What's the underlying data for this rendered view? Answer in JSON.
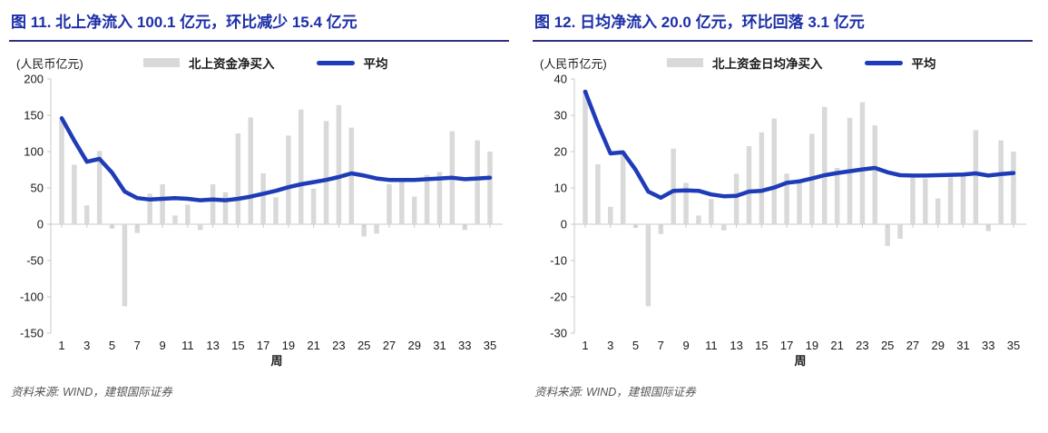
{
  "footer": {
    "text": "资料来源: WIND，建银国际证券"
  },
  "colors": {
    "title": "#1c2fa8",
    "title_underline": "#32327c",
    "bar": "#d9d9d9",
    "line": "#1e3cb8",
    "axis": "#c8c8c8",
    "tick_text": "#1a1a1a",
    "footer_text": "#555555"
  },
  "chart_data": [
    {
      "type": "bar",
      "title": "图 11. 北上净流入 100.1 亿元，环比减少 15.4 亿元",
      "ylabel": "(人民币亿元)",
      "xlabel": "周",
      "ylim": [
        -150,
        200
      ],
      "yticks": [
        200,
        150,
        100,
        50,
        0,
        -50,
        -100,
        -150
      ],
      "xticks": [
        1,
        3,
        5,
        7,
        9,
        11,
        13,
        15,
        17,
        19,
        21,
        23,
        25,
        27,
        29,
        31,
        33,
        35
      ],
      "grid": false,
      "legend_position": "top",
      "x": [
        1,
        2,
        3,
        4,
        5,
        6,
        7,
        8,
        9,
        10,
        11,
        12,
        13,
        14,
        15,
        16,
        17,
        18,
        19,
        20,
        21,
        22,
        23,
        24,
        25,
        26,
        27,
        28,
        29,
        30,
        31,
        32,
        33,
        34,
        35
      ],
      "series": [
        {
          "name": "北上资金净买入",
          "type": "bar",
          "values": [
            144,
            82,
            26,
            101,
            -6,
            -113,
            -12,
            42,
            55,
            12,
            27,
            -8,
            55,
            44,
            125,
            147,
            70,
            37,
            122,
            158,
            49,
            142,
            164,
            133,
            -17,
            -13,
            55,
            58,
            38,
            68,
            72,
            128,
            -8,
            115.5,
            100.1
          ]
        },
        {
          "name": "平均",
          "type": "line",
          "values": [
            146,
            115,
            86,
            90,
            71,
            45,
            36,
            34,
            35,
            36,
            35,
            33,
            34,
            33,
            35,
            38,
            42,
            46,
            51,
            55,
            58,
            61,
            65,
            70,
            67,
            63,
            61,
            61,
            61,
            62,
            63,
            64,
            62,
            63,
            64
          ]
        }
      ]
    },
    {
      "type": "bar",
      "title": "图 12. 日均净流入 20.0 亿元，环比回落 3.1 亿元",
      "ylabel": "(人民币亿元)",
      "xlabel": "周",
      "ylim": [
        -30,
        40
      ],
      "yticks": [
        40,
        30,
        20,
        10,
        0,
        -10,
        -20,
        -30
      ],
      "xticks": [
        1,
        3,
        5,
        7,
        9,
        11,
        13,
        15,
        17,
        19,
        21,
        23,
        25,
        27,
        29,
        31,
        33,
        35
      ],
      "grid": false,
      "legend_position": "top",
      "x": [
        1,
        2,
        3,
        4,
        5,
        6,
        7,
        8,
        9,
        10,
        11,
        12,
        13,
        14,
        15,
        16,
        17,
        18,
        19,
        20,
        21,
        22,
        23,
        24,
        25,
        26,
        27,
        28,
        29,
        30,
        31,
        32,
        33,
        34,
        35
      ],
      "series": [
        {
          "name": "北上资金日均净买入",
          "type": "bar",
          "values": [
            37,
            16.5,
            4.8,
            20.1,
            -1,
            -22.6,
            -2.7,
            20.8,
            11.4,
            2.4,
            6.9,
            -1.7,
            13.9,
            21.5,
            25.3,
            29.1,
            13.9,
            12.4,
            24.9,
            32.3,
            15.5,
            29.3,
            33.6,
            27.2,
            -6,
            -4,
            12.9,
            12.6,
            7.1,
            12.9,
            13.5,
            25.9,
            -1.9,
            23.1,
            20
          ]
        },
        {
          "name": "平均",
          "type": "line",
          "values": [
            36.5,
            27.5,
            19.5,
            19.8,
            15,
            9,
            7.3,
            9.2,
            9.3,
            9.2,
            8.2,
            7.7,
            7.8,
            9,
            9.2,
            10.1,
            11.4,
            11.8,
            12.6,
            13.5,
            14.1,
            14.6,
            15.1,
            15.5,
            14.3,
            13.5,
            13.4,
            13.4,
            13.5,
            13.6,
            13.7,
            14,
            13.4,
            13.8,
            14.1
          ]
        }
      ]
    }
  ]
}
